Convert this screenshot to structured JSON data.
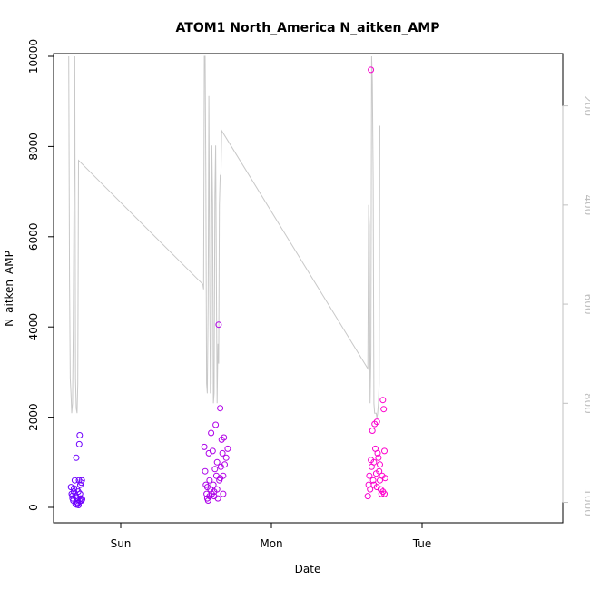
{
  "chart_data": {
    "type": "scatter",
    "title": "ATOM1 North_America N_aitken_AMP",
    "xlabel": "Date",
    "ylabel": "N_aitken_AMP",
    "ylim": [
      0,
      10000
    ],
    "yticks": [
      0,
      2000,
      4000,
      6000,
      8000,
      10000
    ],
    "xlim_days": [
      -0.47,
      2.98
    ],
    "x_ticks": [
      {
        "label": "Sun",
        "day": 0
      },
      {
        "label": "Mon",
        "day": 1
      },
      {
        "label": "Tue",
        "day": 2
      }
    ],
    "right_axis": {
      "ticks": [
        200,
        400,
        600,
        800,
        1000
      ],
      "ylim": [
        1010,
        100
      ],
      "reversed": true,
      "color": "#c0c0c0"
    },
    "point_color_gradient": [
      "#6b00ff",
      "#ff00cc"
    ],
    "scatter_points": [
      [
        -0.33,
        450
      ],
      [
        -0.325,
        300
      ],
      [
        -0.32,
        200
      ],
      [
        -0.315,
        150
      ],
      [
        -0.31,
        350
      ],
      [
        -0.305,
        600
      ],
      [
        -0.3,
        80
      ],
      [
        -0.298,
        250
      ],
      [
        -0.295,
        1100
      ],
      [
        -0.292,
        60
      ],
      [
        -0.29,
        400
      ],
      [
        -0.288,
        100
      ],
      [
        -0.285,
        180
      ],
      [
        -0.282,
        350
      ],
      [
        -0.28,
        50
      ],
      [
        -0.277,
        600
      ],
      [
        -0.275,
        1400
      ],
      [
        -0.272,
        1600
      ],
      [
        -0.27,
        300
      ],
      [
        -0.268,
        500
      ],
      [
        -0.265,
        200
      ],
      [
        -0.262,
        550
      ],
      [
        -0.26,
        150
      ],
      [
        -0.258,
        600
      ],
      [
        -0.256,
        180
      ],
      [
        -0.32,
        260
      ],
      [
        -0.31,
        420
      ],
      [
        -0.295,
        220
      ],
      [
        -0.285,
        90
      ],
      [
        -0.27,
        140
      ],
      [
        0.555,
        1340
      ],
      [
        0.56,
        800
      ],
      [
        0.565,
        500
      ],
      [
        0.57,
        300
      ],
      [
        0.575,
        200
      ],
      [
        0.58,
        150
      ],
      [
        0.585,
        1200
      ],
      [
        0.59,
        600
      ],
      [
        0.595,
        400
      ],
      [
        0.6,
        1650
      ],
      [
        0.605,
        300
      ],
      [
        0.61,
        1250
      ],
      [
        0.615,
        500
      ],
      [
        0.62,
        250
      ],
      [
        0.625,
        850
      ],
      [
        0.63,
        1830
      ],
      [
        0.635,
        700
      ],
      [
        0.64,
        400
      ],
      [
        0.645,
        200
      ],
      [
        0.65,
        4050
      ],
      [
        0.655,
        600
      ],
      [
        0.66,
        2200
      ],
      [
        0.665,
        900
      ],
      [
        0.67,
        1500
      ],
      [
        0.675,
        1200
      ],
      [
        0.68,
        700
      ],
      [
        0.685,
        1550
      ],
      [
        0.69,
        950
      ],
      [
        0.7,
        1100
      ],
      [
        0.71,
        1300
      ],
      [
        0.575,
        450
      ],
      [
        0.59,
        250
      ],
      [
        0.62,
        350
      ],
      [
        0.64,
        1000
      ],
      [
        0.66,
        650
      ],
      [
        0.68,
        300
      ],
      [
        1.64,
        250
      ],
      [
        1.645,
        500
      ],
      [
        1.65,
        700
      ],
      [
        1.655,
        400
      ],
      [
        1.66,
        1050
      ],
      [
        1.665,
        900
      ],
      [
        1.67,
        1700
      ],
      [
        1.675,
        600
      ],
      [
        1.68,
        500
      ],
      [
        1.685,
        1850
      ],
      [
        1.69,
        1300
      ],
      [
        1.695,
        750
      ],
      [
        1.7,
        1900
      ],
      [
        1.705,
        1200
      ],
      [
        1.71,
        1100
      ],
      [
        1.715,
        800
      ],
      [
        1.72,
        600
      ],
      [
        1.725,
        400
      ],
      [
        1.73,
        300
      ],
      [
        1.735,
        700
      ],
      [
        1.74,
        2380
      ],
      [
        1.745,
        2180
      ],
      [
        1.75,
        1250
      ],
      [
        1.755,
        650
      ],
      [
        1.66,
        9700
      ],
      [
        1.68,
        1000
      ],
      [
        1.7,
        450
      ],
      [
        1.72,
        950
      ],
      [
        1.74,
        350
      ],
      [
        1.75,
        300
      ]
    ],
    "line_series": [
      [
        -0.345,
        100
      ],
      [
        -0.34,
        550
      ],
      [
        -0.335,
        750
      ],
      [
        -0.33,
        780
      ],
      [
        -0.325,
        820
      ],
      [
        -0.32,
        800
      ],
      [
        -0.315,
        650
      ],
      [
        -0.31,
        400
      ],
      [
        -0.305,
        100
      ],
      [
        -0.3,
        750
      ],
      [
        -0.295,
        810
      ],
      [
        -0.29,
        820
      ],
      [
        -0.285,
        760
      ],
      [
        -0.28,
        310
      ],
      [
        0.545,
        560
      ],
      [
        0.55,
        570
      ],
      [
        0.555,
        100
      ],
      [
        0.56,
        100
      ],
      [
        0.565,
        350
      ],
      [
        0.57,
        760
      ],
      [
        0.575,
        780
      ],
      [
        0.58,
        600
      ],
      [
        0.585,
        180
      ],
      [
        0.59,
        500
      ],
      [
        0.595,
        780
      ],
      [
        0.6,
        760
      ],
      [
        0.605,
        280
      ],
      [
        0.61,
        400
      ],
      [
        0.615,
        800
      ],
      [
        0.62,
        780
      ],
      [
        0.625,
        380
      ],
      [
        0.63,
        280
      ],
      [
        0.635,
        550
      ],
      [
        0.64,
        800
      ],
      [
        0.645,
        680
      ],
      [
        0.65,
        720
      ],
      [
        0.655,
        400
      ],
      [
        0.66,
        340
      ],
      [
        0.665,
        340
      ],
      [
        0.67,
        250
      ],
      [
        1.64,
        730
      ],
      [
        1.645,
        400
      ],
      [
        1.65,
        440
      ],
      [
        1.655,
        800
      ],
      [
        1.66,
        700
      ],
      [
        1.665,
        100
      ],
      [
        1.67,
        150
      ],
      [
        1.675,
        350
      ],
      [
        1.68,
        800
      ],
      [
        1.685,
        820
      ],
      [
        1.69,
        820
      ],
      [
        1.695,
        820
      ],
      [
        1.7,
        830
      ],
      [
        1.705,
        820
      ],
      [
        1.71,
        800
      ],
      [
        1.715,
        760
      ],
      [
        1.72,
        240
      ]
    ]
  }
}
